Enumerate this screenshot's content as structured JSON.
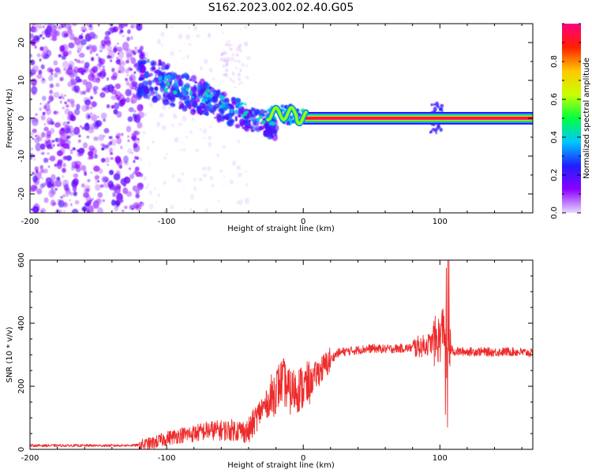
{
  "chart_data": [
    {
      "type": "heatmap",
      "title": "S162.2023.002.02.40.G05",
      "xlabel": "Height of straight line (km)",
      "ylabel": "Frequency (Hz)",
      "xlim": [
        -200,
        168
      ],
      "ylim": [
        -25,
        25
      ],
      "x_ticks": [
        -200,
        -100,
        0,
        100
      ],
      "y_ticks": [
        20,
        10,
        0,
        -10,
        -20
      ],
      "colorbar": {
        "label": "Normalized spectral amplitude",
        "range": [
          0,
          1
        ],
        "ticks": [
          0.0,
          0.2,
          0.4,
          0.6,
          0.8
        ],
        "colors": [
          "#e8d8ff",
          "#8a00ff",
          "#2020ff",
          "#00c8ff",
          "#00ff40",
          "#c8ff00",
          "#ffc800",
          "#ff2000",
          "#ff0080"
        ]
      },
      "features": [
        {
          "x_range": [
            -200,
            -120
          ],
          "freq_range": [
            -25,
            25
          ],
          "amplitude": 0.1
        },
        {
          "x_range": [
            -120,
            -30
          ],
          "freq_center_start": 12,
          "freq_center_end": -2,
          "amplitude": 0.2
        },
        {
          "x_range": [
            -30,
            0
          ],
          "freq_center": 1,
          "amplitude": 0.4
        },
        {
          "x_range": [
            0,
            168
          ],
          "freq_center": 0,
          "amplitude": 1.0
        },
        {
          "x_range": [
            95,
            102
          ],
          "freq_range": [
            -4,
            4
          ],
          "amplitude": 0.3
        }
      ]
    },
    {
      "type": "line",
      "xlabel": "Height of straight line (km)",
      "ylabel": "SNR (10 * v/v)",
      "xlim": [
        -200,
        168
      ],
      "ylim": [
        0,
        600
      ],
      "x_ticks": [
        -200,
        -100,
        0,
        100
      ],
      "y_ticks": [
        0,
        200,
        400,
        600
      ],
      "color": "#ee2b2b",
      "series": [
        {
          "x": [
            -200,
            -180,
            -160,
            -140,
            -120,
            -110,
            -100,
            -90,
            -80,
            -70,
            -60,
            -50,
            -40,
            -35,
            -30,
            -25,
            -20,
            -15,
            -10,
            -5,
            0,
            5,
            10,
            15,
            20,
            25,
            30,
            40,
            50,
            60,
            70,
            80,
            90,
            95,
            100,
            103,
            105,
            106,
            108,
            110,
            120,
            130,
            140,
            150,
            160,
            168
          ],
          "y": [
            12,
            12,
            12,
            12,
            13,
            20,
            35,
            45,
            50,
            60,
            60,
            62,
            55,
            95,
            130,
            150,
            190,
            220,
            180,
            190,
            195,
            210,
            240,
            260,
            285,
            305,
            310,
            315,
            320,
            318,
            320,
            322,
            330,
            340,
            350,
            400,
            300,
            310,
            320,
            310,
            310,
            310,
            308,
            310,
            308,
            305
          ]
        }
      ]
    }
  ]
}
